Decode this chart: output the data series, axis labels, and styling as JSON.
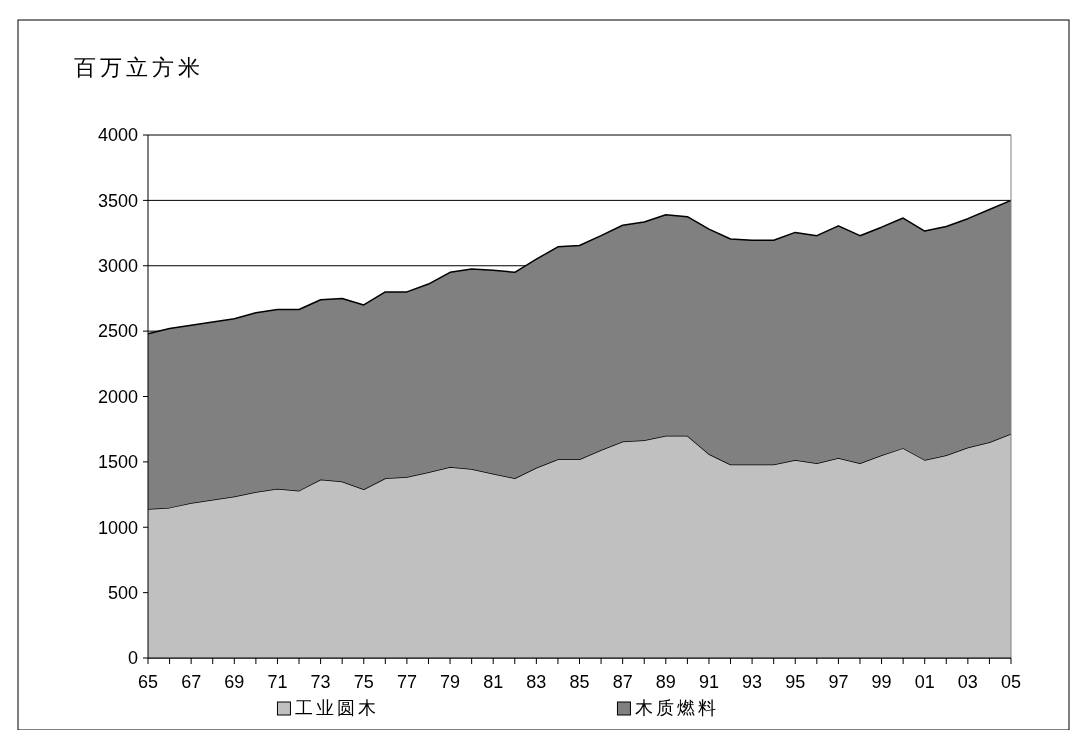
{
  "chart_data": {
    "type": "area",
    "stacked": true,
    "ylabel": "百万立方米",
    "categories": [
      "65",
      null,
      "67",
      null,
      "69",
      null,
      "71",
      null,
      "73",
      null,
      "75",
      null,
      "77",
      null,
      "79",
      null,
      "81",
      null,
      "83",
      null,
      "85",
      null,
      "87",
      null,
      "89",
      null,
      "91",
      null,
      "93",
      null,
      "95",
      null,
      "97",
      null,
      "99",
      null,
      "01",
      null,
      "03",
      null,
      "05"
    ],
    "series": [
      {
        "name": "工业圆木",
        "color": "#c0c0c0",
        "values": [
          1140,
          1150,
          1185,
          1210,
          1235,
          1270,
          1295,
          1280,
          1365,
          1350,
          1290,
          1375,
          1385,
          1420,
          1460,
          1445,
          1410,
          1375,
          1455,
          1520,
          1520,
          1590,
          1655,
          1665,
          1700,
          1700,
          1560,
          1480,
          1480,
          1480,
          1515,
          1490,
          1530,
          1490,
          1550,
          1605,
          1515,
          1550,
          1610,
          1650,
          1715
        ]
      },
      {
        "name": "木质燃料",
        "color": "#808080",
        "values": [
          1340,
          1370,
          1360,
          1360,
          1360,
          1370,
          1370,
          1385,
          1375,
          1400,
          1410,
          1425,
          1415,
          1440,
          1490,
          1530,
          1555,
          1575,
          1595,
          1625,
          1635,
          1640,
          1655,
          1670,
          1690,
          1675,
          1720,
          1725,
          1715,
          1715,
          1740,
          1740,
          1775,
          1740,
          1745,
          1760,
          1750,
          1750,
          1750,
          1780,
          1785
        ]
      }
    ],
    "ylim": [
      0,
      4000
    ],
    "yticks": [
      0,
      500,
      1000,
      1500,
      2000,
      2500,
      3000,
      3500,
      4000
    ],
    "grid": "y",
    "legend": "bottom"
  }
}
